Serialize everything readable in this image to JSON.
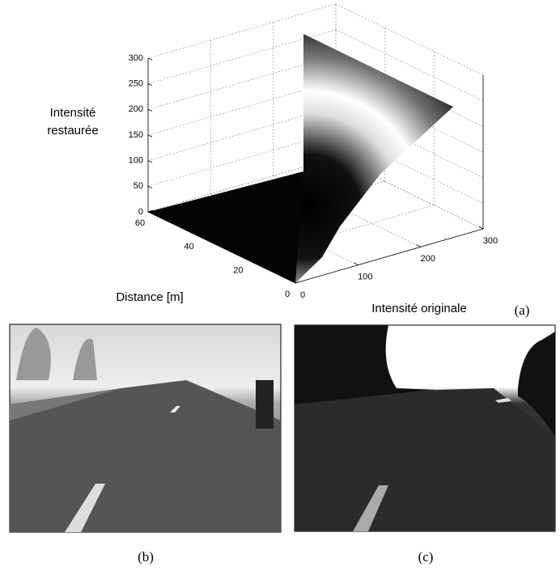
{
  "chart_data": {
    "type": "surface3d",
    "zlabel": [
      "Intensité",
      "restaurée"
    ],
    "ylabel": "Distance [m]",
    "xlabel": "Intensité originale",
    "panel_label": "(a)",
    "xlim": [
      0,
      300
    ],
    "xticks": [
      0,
      100,
      200,
      300
    ],
    "ylim": [
      0,
      60
    ],
    "yticks": [
      0,
      20,
      40,
      60
    ],
    "zlim": [
      0,
      300
    ],
    "zticks": [
      0,
      50,
      100,
      150,
      200,
      250,
      300
    ],
    "grid": true
  },
  "panels": [
    {
      "label": "(b)"
    },
    {
      "label": "(c)"
    }
  ]
}
